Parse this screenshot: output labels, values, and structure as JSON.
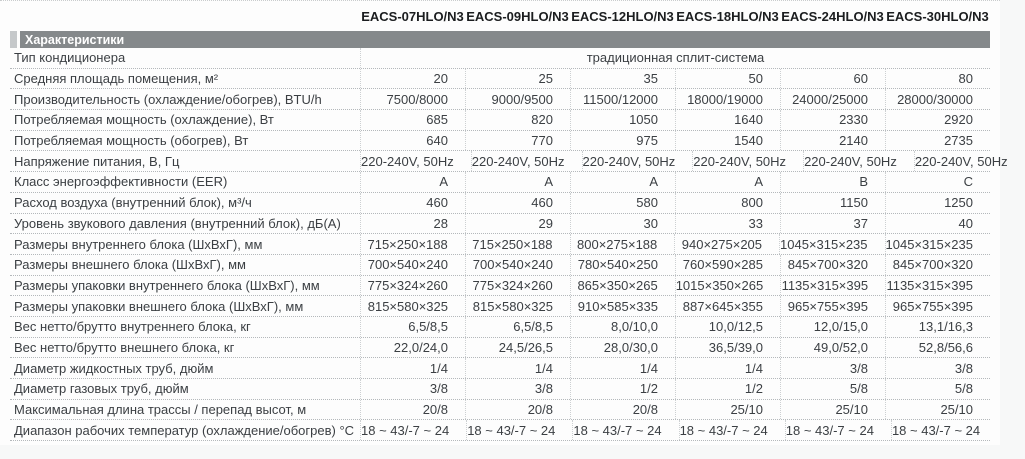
{
  "colors": {
    "section_band_bg": "#85898b",
    "section_band_tab": "#c5c8ca",
    "section_band_text": "#ffffff",
    "body_text": "#3b3f43",
    "model_header_text": "#1b1d1f",
    "dotted_line": "#b4b8bb",
    "page_bg": "#fdfdfd"
  },
  "table": {
    "section_title": "Характеристики",
    "models": [
      "EACS-07HLO/N3",
      "EACS-09HLO/N3",
      "EACS-12HLO/N3",
      "EACS-18HLO/N3",
      "EACS-24HLO/N3",
      "EACS-30HLO/N3"
    ],
    "type_row": {
      "label": "Тип кондиционера",
      "value": "традиционная сплит-система"
    },
    "rows": [
      {
        "label": "Средняя площадь помещения, м²",
        "values": [
          "20",
          "25",
          "35",
          "50",
          "60",
          "80"
        ]
      },
      {
        "label": "Производительность (охлаждение/обогрев), BTU/h",
        "values": [
          "7500/8000",
          "9000/9500",
          "11500/12000",
          "18000/19000",
          "24000/25000",
          "28000/30000"
        ]
      },
      {
        "label": "Потребляемая мощность (охлаждение), Вт",
        "values": [
          "685",
          "820",
          "1050",
          "1640",
          "2330",
          "2920"
        ]
      },
      {
        "label": "Потребляемая мощность (обогрев), Вт",
        "values": [
          "640",
          "770",
          "975",
          "1540",
          "2140",
          "2735"
        ]
      },
      {
        "label": "Напряжение питания, В, Гц",
        "values": [
          "220-240V, 50Hz",
          "220-240V, 50Hz",
          "220-240V, 50Hz",
          "220-240V, 50Hz",
          "220-240V, 50Hz",
          "220-240V, 50Hz"
        ]
      },
      {
        "label": "Класс энергоэффективности (EER)",
        "values": [
          "A",
          "A",
          "A",
          "A",
          "B",
          "C"
        ]
      },
      {
        "label": "Расход воздуха (внутренний блок), м³/ч",
        "values": [
          "460",
          "460",
          "580",
          "800",
          "1150",
          "1250"
        ]
      },
      {
        "label": "Уровень звукового давления (внутренний блок), дБ(А)",
        "values": [
          "28",
          "29",
          "30",
          "33",
          "37",
          "40"
        ]
      },
      {
        "label": "Размеры внутреннего блока (ШхВхГ), мм",
        "values": [
          "715×250×188",
          "715×250×188",
          "800×275×188",
          "940×275×205",
          "1045×315×235",
          "1045×315×235"
        ]
      },
      {
        "label": "Размеры внешнего блока (ШхВхГ), мм",
        "values": [
          "700×540×240",
          "700×540×240",
          "780×540×250",
          "760×590×285",
          "845×700×320",
          "845×700×320"
        ]
      },
      {
        "label": "Размеры упаковки внутреннего блока (ШхВхГ), мм",
        "values": [
          "775×324×260",
          "775×324×260",
          "865×350×265",
          "1015×350×265",
          "1135×315×395",
          "1135×315×395"
        ]
      },
      {
        "label": "Размеры упаковки внешнего блока (ШхВхГ), мм",
        "values": [
          "815×580×325",
          "815×580×325",
          "910×585×335",
          "887×645×355",
          "965×755×395",
          "965×755×395"
        ]
      },
      {
        "label": "Вес нетто/брутто внутреннего блока, кг",
        "values": [
          "6,5/8,5",
          "6,5/8,5",
          "8,0/10,0",
          "10,0/12,5",
          "12,0/15,0",
          "13,1/16,3"
        ]
      },
      {
        "label": "Вес нетто/брутто внешнего блока, кг",
        "values": [
          "22,0/24,0",
          "24,5/26,5",
          "28,0/30,0",
          "36,5/39,0",
          "49,0/52,0",
          "52,8/56,6"
        ]
      },
      {
        "label": "Диаметр жидкостных труб, дюйм",
        "values": [
          "1/4",
          "1/4",
          "1/4",
          "1/4",
          "3/8",
          "3/8"
        ]
      },
      {
        "label": "Диаметр газовых труб, дюйм",
        "values": [
          "3/8",
          "3/8",
          "1/2",
          "1/2",
          "5/8",
          "5/8"
        ]
      },
      {
        "label": "Максимальная длина трассы / перепад высот, м",
        "values": [
          "20/8",
          "20/8",
          "20/8",
          "25/10",
          "25/10",
          "25/10"
        ]
      },
      {
        "label": "Диапазон рабочих температур (охлаждение/обогрев) °С",
        "values": [
          "18 ~ 43/-7 ~ 24",
          "18 ~ 43/-7 ~ 24",
          "18 ~ 43/-7 ~ 24",
          "18 ~ 43/-7 ~ 24",
          "18 ~ 43/-7 ~ 24",
          "18 ~ 43/-7 ~ 24"
        ]
      }
    ]
  }
}
